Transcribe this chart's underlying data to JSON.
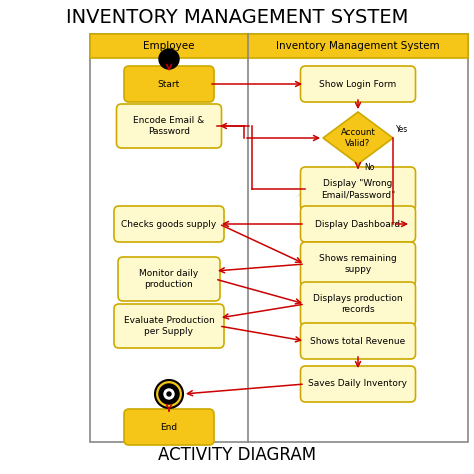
{
  "title": "INVENTORY MANAGEMENT SYSTEM",
  "subtitle": "ACTIVITY DIAGRAM",
  "background_color": "#ffffff",
  "header_bg": "#F5C518",
  "header_border": "#ccaa00",
  "lane_left_label": "Employee",
  "lane_right_label": "Inventory Management System",
  "node_fill_yellow": "#F5C518",
  "node_fill_light": "#FFFACD",
  "node_border": "#ccaa00",
  "arrow_color": "#cc0000",
  "diagram_border": "#888888",
  "watermark_color": "#b0c8e0"
}
